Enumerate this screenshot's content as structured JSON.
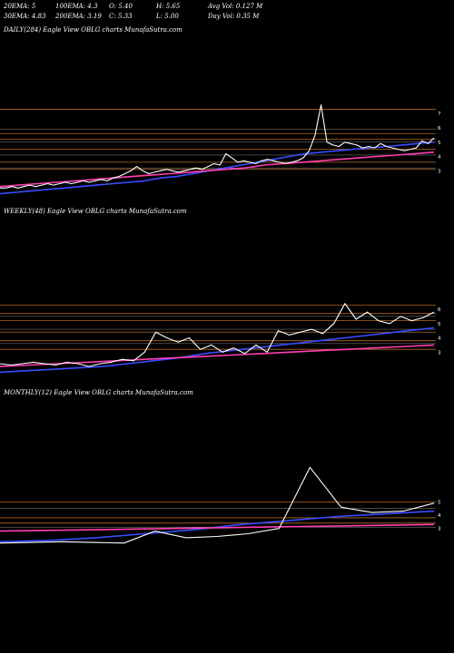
{
  "header": {
    "row1": [
      "20EMA: 5",
      "100EMA: 4.3",
      "O: 5.40",
      "H: 5.65",
      "Avg Vol: 0.127 M"
    ],
    "row2": [
      "30EMA: 4.83",
      "200EMA: 3.19",
      "C: 5.33",
      "L: 5.00",
      "Day Vol: 0.35 M"
    ]
  },
  "colors": {
    "background": "#000000",
    "price": "#ffffff",
    "ema_blue": "#3a4cff",
    "ema_pink": "#ff3fb0",
    "level_orange": "#c8732a",
    "level_white": "#ffffff"
  },
  "panels": [
    {
      "title": "DAILY(284) Eagle   View  OBLG charts MunafaSutra.com",
      "tick_labels": [
        "7",
        "6",
        "5",
        "4",
        "3"
      ]
    },
    {
      "title": "WEEKLY(48) Eagle   View  OBLG charts MunafaSutra.com",
      "tick_labels": [
        "6",
        "5",
        "4",
        "3"
      ]
    },
    {
      "title": "MONTHLY(12) Eagle   View  OBLG charts MunafaSutra.com",
      "tick_labels": [
        "5",
        "4",
        "3"
      ]
    }
  ],
  "chart_data": [
    {
      "type": "line",
      "title": "DAILY(284) Eagle   View  OBLG charts MunafaSutra.com",
      "ylim": [
        1.5,
        8
      ],
      "grid": false,
      "y_ticks": [
        7,
        6,
        5,
        4,
        3
      ],
      "levels": [
        {
          "color": "orange",
          "values": [
            7.3,
            5.6,
            5.2,
            4.5,
            3.6,
            3.1
          ]
        },
        {
          "color": "white",
          "values": [
            5.9,
            5.0,
            4.1,
            3.2
          ]
        }
      ],
      "series": [
        {
          "color": "white",
          "values": [
            1.8,
            1.8,
            1.9,
            1.8,
            1.9,
            2.0,
            1.9,
            2.0,
            2.1,
            2.0,
            2.1,
            2.2,
            2.1,
            2.2,
            2.3,
            2.2,
            2.3,
            2.4,
            2.3,
            2.5,
            2.6,
            2.8,
            3.0,
            3.3,
            3.0,
            2.8,
            2.9,
            3.0,
            3.1,
            3.0,
            2.9,
            3.0,
            3.1,
            3.2,
            3.1,
            3.3,
            3.5,
            3.4,
            4.2,
            3.9,
            3.6,
            3.7,
            3.6,
            3.5,
            3.7,
            3.8,
            3.7,
            3.6,
            3.5,
            3.6,
            3.7,
            3.9,
            4.4,
            5.5,
            7.6,
            5.0,
            4.8,
            4.7,
            5.0,
            4.9,
            4.8,
            4.6,
            4.7,
            4.6,
            4.9,
            4.7,
            4.6,
            4.5,
            4.4,
            4.5,
            4.6,
            5.1,
            4.9,
            5.3
          ]
        },
        {
          "color": "blue",
          "values": [
            1.4,
            1.5,
            1.6,
            1.7,
            1.8,
            1.9,
            2.0,
            2.1,
            2.2,
            2.3,
            2.5,
            2.6,
            2.8,
            3.0,
            3.2,
            3.4,
            3.6,
            3.8,
            4.0,
            4.2,
            4.3,
            4.4,
            4.5,
            4.6,
            4.7,
            4.8,
            4.9,
            5.0
          ]
        },
        {
          "color": "pink",
          "values": [
            1.9,
            2.0,
            2.1,
            2.2,
            2.3,
            2.4,
            2.5,
            2.6,
            2.7,
            2.8,
            2.9,
            3.0,
            3.1,
            3.2,
            3.4,
            3.5,
            3.6,
            3.7,
            3.8,
            3.9,
            4.0,
            4.1,
            4.2,
            4.3
          ]
        }
      ]
    },
    {
      "type": "line",
      "title": "WEEKLY(48) Eagle   View  OBLG charts MunafaSutra.com",
      "ylim": [
        1.5,
        8
      ],
      "grid": false,
      "y_ticks": [
        6,
        5,
        4,
        3
      ],
      "levels": [
        {
          "color": "orange",
          "values": [
            6.3,
            5.7,
            5.2,
            4.4,
            3.8,
            3.2
          ]
        },
        {
          "color": "white",
          "values": [
            5.5,
            4.6,
            3.6
          ]
        }
      ],
      "series": [
        {
          "color": "white",
          "values": [
            2.2,
            2.1,
            2.2,
            2.3,
            2.2,
            2.1,
            2.3,
            2.2,
            2.0,
            2.2,
            2.3,
            2.5,
            2.4,
            3.0,
            4.4,
            4.0,
            3.7,
            4.0,
            3.2,
            3.5,
            3.0,
            3.3,
            2.9,
            3.5,
            3.0,
            4.5,
            4.2,
            4.4,
            4.6,
            4.3,
            5.0,
            6.4,
            5.3,
            5.8,
            5.2,
            5.0,
            5.5,
            5.2,
            5.4,
            5.8
          ]
        },
        {
          "color": "blue",
          "values": [
            1.6,
            1.7,
            1.8,
            1.9,
            2.0,
            2.2,
            2.4,
            2.6,
            2.9,
            3.1,
            3.3,
            3.5,
            3.7,
            3.9,
            4.1,
            4.3,
            4.5,
            4.7
          ]
        },
        {
          "color": "pink",
          "values": [
            2.0,
            2.1,
            2.2,
            2.3,
            2.4,
            2.5,
            2.6,
            2.7,
            2.8,
            2.9,
            3.0,
            3.1,
            3.2,
            3.3,
            3.4,
            3.5
          ]
        }
      ]
    },
    {
      "type": "line",
      "title": "MONTHLY(12) Eagle   View  OBLG charts MunafaSutra.com",
      "ylim": [
        1,
        8
      ],
      "grid": false,
      "y_ticks": [
        5,
        4,
        3
      ],
      "levels": [
        {
          "color": "orange",
          "values": [
            5.0,
            3.8,
            3.4
          ]
        },
        {
          "color": "white",
          "values": [
            4.5,
            3.1
          ]
        }
      ],
      "series": [
        {
          "color": "white",
          "values": [
            1.9,
            1.95,
            2.0,
            1.95,
            1.9,
            2.8,
            2.3,
            2.4,
            2.6,
            3.0,
            7.6,
            4.6,
            4.2,
            4.3,
            4.9
          ]
        },
        {
          "color": "blue",
          "values": [
            2.0,
            2.1,
            2.3,
            2.6,
            2.9,
            3.3,
            3.6,
            3.9,
            4.1,
            4.3
          ]
        },
        {
          "color": "pink",
          "values": [
            2.8,
            2.9,
            3.0,
            3.1,
            3.2,
            3.3
          ]
        }
      ]
    }
  ]
}
